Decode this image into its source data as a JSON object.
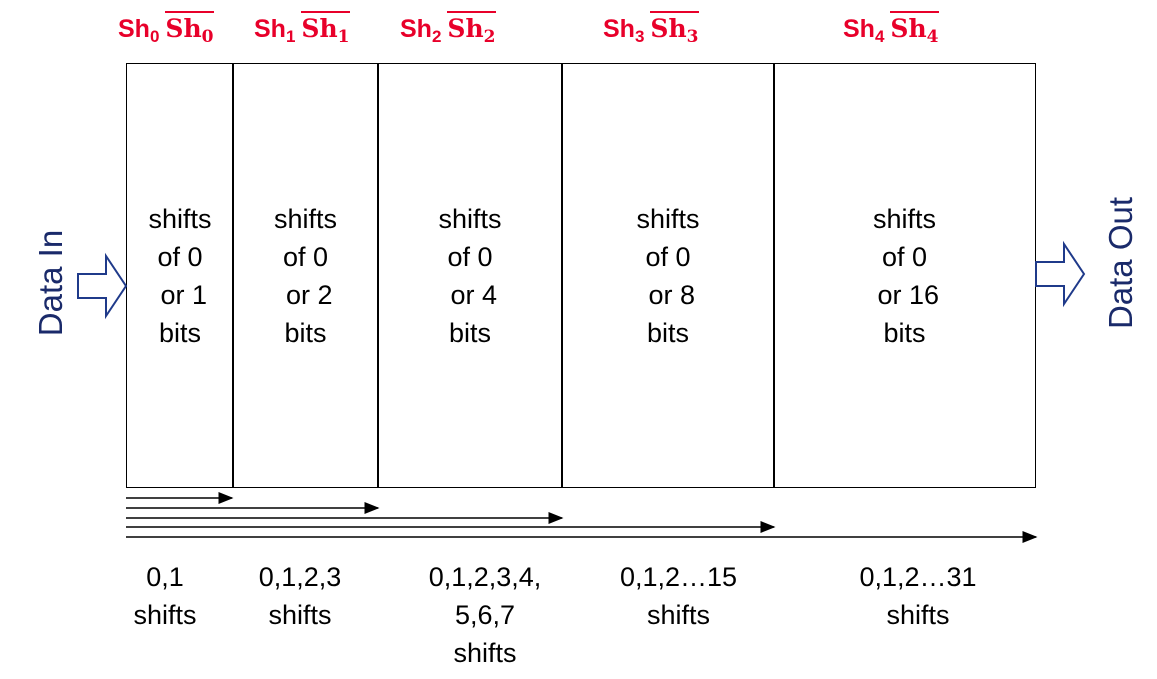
{
  "headers": [
    {
      "base": "Sh",
      "sub": "0",
      "bar_base": "Sh",
      "bar_sub": "0"
    },
    {
      "base": "Sh",
      "sub": "1",
      "bar_base": "Sh",
      "bar_sub": "1"
    },
    {
      "base": "Sh",
      "sub": "2",
      "bar_base": "Sh",
      "bar_sub": "2"
    },
    {
      "base": "Sh",
      "sub": "3",
      "bar_base": "Sh",
      "bar_sub": "3"
    },
    {
      "base": "Sh",
      "sub": "4",
      "bar_base": "Sh",
      "bar_sub": "4"
    }
  ],
  "stages": [
    {
      "text": "shifts\nof 0\n or 1\nbits"
    },
    {
      "text": "shifts\nof 0\n or 2\nbits"
    },
    {
      "text": "shifts\nof 0\n or 4\nbits"
    },
    {
      "text": "shifts\nof 0\n or 8\nbits"
    },
    {
      "text": "shifts\nof 0\n or 16\nbits"
    }
  ],
  "data_in": "Data In",
  "data_out": "Data Out",
  "captions": [
    {
      "text": "0,1\nshifts"
    },
    {
      "text": "0,1,2,3\nshifts"
    },
    {
      "text": "0,1,2,3,4,\n5,6,7\nshifts"
    },
    {
      "text": "0,1,2…15\nshifts"
    },
    {
      "text": "0,1,2…31\nshifts"
    }
  ],
  "colors": {
    "control": "#e8002a",
    "io_label": "#1a2a6a",
    "io_arrow": "#1f3a8a"
  }
}
